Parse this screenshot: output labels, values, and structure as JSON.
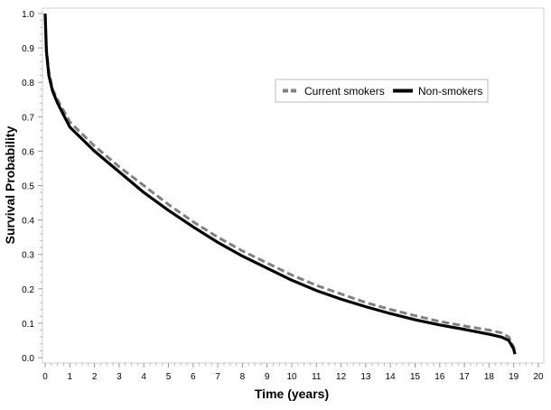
{
  "chart_data": {
    "type": "line",
    "title": "",
    "xlabel": "Time (years)",
    "ylabel": "Survival Probability",
    "xlim": [
      0,
      20
    ],
    "ylim": [
      0,
      1
    ],
    "xticks": [
      "0",
      "1",
      "2",
      "3",
      "4",
      "5",
      "6",
      "7",
      "8",
      "9",
      "10",
      "11",
      "12",
      "13",
      "14",
      "15",
      "16",
      "17",
      "18",
      "19",
      "20"
    ],
    "yticks": [
      "0.0",
      "0.1",
      "0.2",
      "0.3",
      "0.4",
      "0.5",
      "0.6",
      "0.7",
      "0.8",
      "0.9",
      "1.0"
    ],
    "legend_position": "top-right",
    "series": [
      {
        "name": "Current smokers",
        "style": "dashed",
        "color": "#808080",
        "x": [
          0,
          0.05,
          0.15,
          0.3,
          0.5,
          1,
          2,
          3,
          4,
          5,
          6,
          7,
          8,
          9,
          10,
          11,
          12,
          13,
          14,
          15,
          16,
          17,
          18,
          18.5,
          18.8,
          19,
          19.05
        ],
        "y": [
          1.0,
          0.9,
          0.83,
          0.78,
          0.75,
          0.685,
          0.615,
          0.555,
          0.5,
          0.445,
          0.395,
          0.35,
          0.31,
          0.275,
          0.24,
          0.21,
          0.185,
          0.16,
          0.14,
          0.122,
          0.105,
          0.092,
          0.08,
          0.072,
          0.06,
          0.03,
          0.01
        ]
      },
      {
        "name": "Non-smokers",
        "style": "solid",
        "color": "#000000",
        "x": [
          0,
          0.05,
          0.15,
          0.3,
          0.5,
          1,
          2,
          3,
          4,
          5,
          6,
          7,
          8,
          9,
          10,
          11,
          12,
          13,
          14,
          15,
          16,
          17,
          18,
          18.5,
          18.8,
          19,
          19.05
        ],
        "y": [
          1.0,
          0.89,
          0.82,
          0.775,
          0.74,
          0.67,
          0.6,
          0.54,
          0.48,
          0.428,
          0.38,
          0.335,
          0.295,
          0.26,
          0.225,
          0.195,
          0.17,
          0.148,
          0.128,
          0.11,
          0.095,
          0.082,
          0.068,
          0.06,
          0.05,
          0.025,
          0.01
        ]
      }
    ]
  }
}
